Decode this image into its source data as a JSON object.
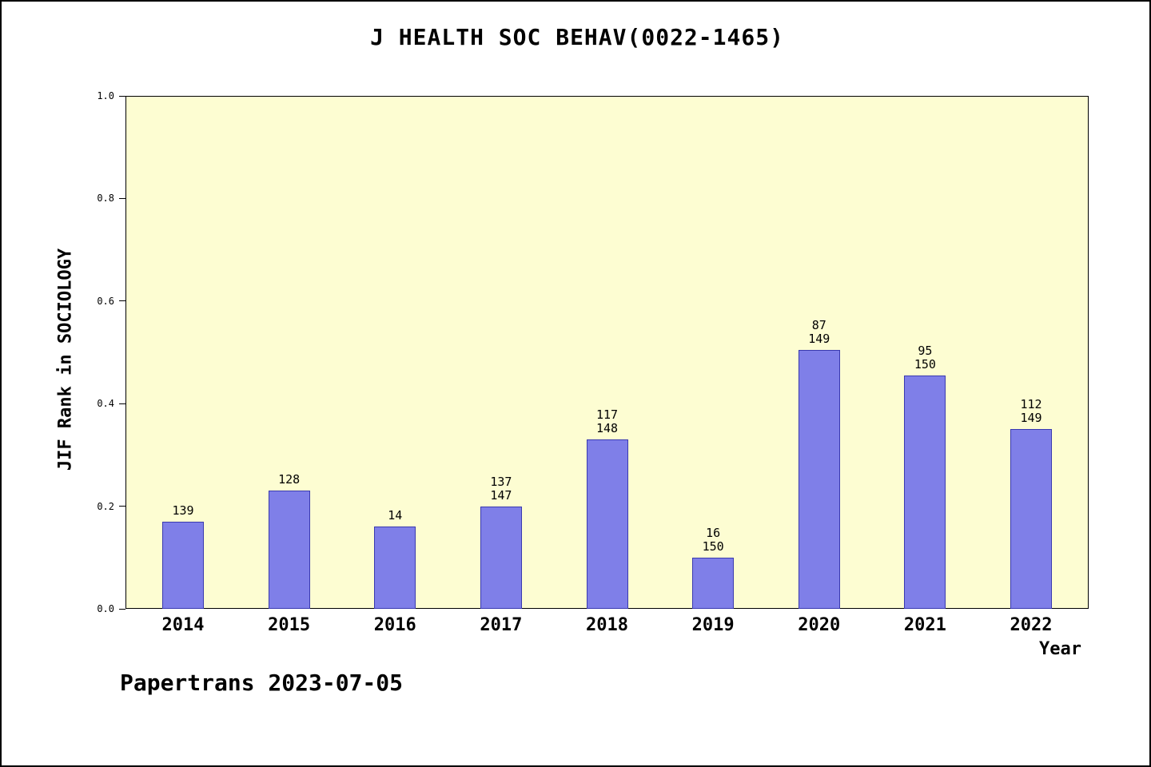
{
  "title": "J HEALTH SOC BEHAV(0022-1465)",
  "footer": "Papertrans 2023-07-05",
  "chart_data": {
    "type": "bar",
    "title": "J HEALTH SOC BEHAV(0022-1465)",
    "xlabel": "Year",
    "ylabel": "JIF Rank in SOCIOLOGY",
    "ylim": [
      0.0,
      1.0
    ],
    "ytick_labels": [
      "0.0",
      "0.2",
      "0.4",
      "0.6",
      "0.8",
      "1.0"
    ],
    "grid": false,
    "legend_position": "none",
    "categories": [
      "2014",
      "2015",
      "2016",
      "2017",
      "2018",
      "2019",
      "2020",
      "2021",
      "2022"
    ],
    "values": [
      0.17,
      0.23,
      0.16,
      0.2,
      0.33,
      0.1,
      0.505,
      0.455,
      0.35
    ],
    "bar_labels": [
      [
        "139"
      ],
      [
        "128"
      ],
      [
        "14"
      ],
      [
        "137",
        "147"
      ],
      [
        "117",
        "148"
      ],
      [
        "16",
        "150"
      ],
      [
        "87",
        "149"
      ],
      [
        "95",
        "150"
      ],
      [
        "112",
        "149"
      ]
    ],
    "colors": {
      "bar": "#7f7fe8",
      "bar_border": "#3a3ab0",
      "plot_bg": "#fdfdd2",
      "axis": "#000000"
    }
  }
}
